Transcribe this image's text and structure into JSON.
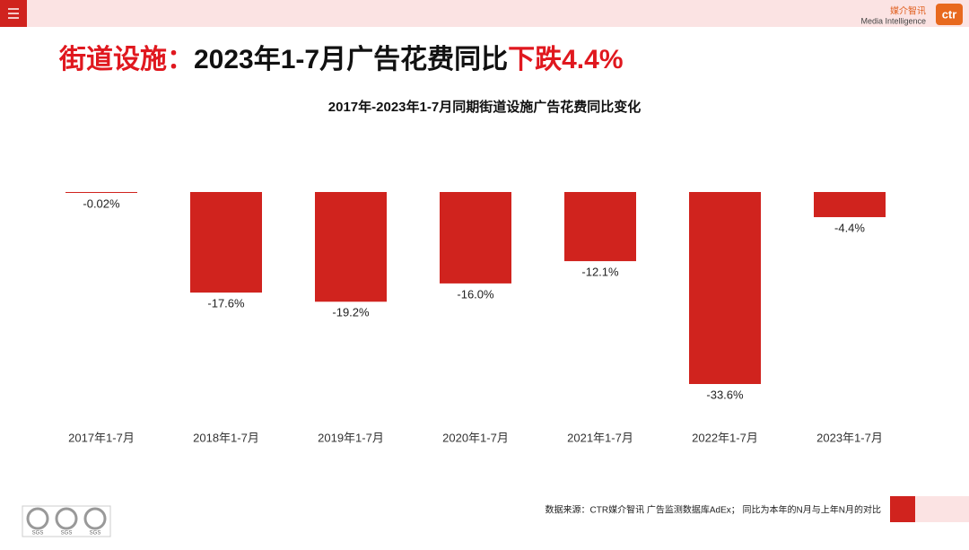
{
  "header": {
    "brand_cn": "媒介智讯",
    "brand_en": "Media Intelligence",
    "logo": "ctr"
  },
  "headline": [
    "街道设施：",
    "2023年1-7月广告花费同比",
    "下跌4.4%"
  ],
  "chart_data": {
    "type": "bar",
    "title": "2017年-2023年1-7月同期街道设施广告花费同比变化",
    "categories": [
      "2017年1-7月",
      "2018年1-7月",
      "2019年1-7月",
      "2020年1-7月",
      "2021年1-7月",
      "2022年1-7月",
      "2023年1-7月"
    ],
    "values": [
      -0.02,
      -17.6,
      -19.2,
      -16.0,
      -12.1,
      -33.6,
      -4.4
    ],
    "value_labels": [
      "-0.02%",
      "-17.6%",
      "-19.2%",
      "-16.0%",
      "-12.1%",
      "-33.6%",
      "-4.4%"
    ],
    "color": "#d0231e"
  },
  "footer": {
    "source": "数据来源：CTR媒介智讯 广告监测数据库AdEx； 同比为本年的N月与上年N月的对比",
    "badges": [
      "SGS",
      "SGS",
      "SGS"
    ]
  }
}
